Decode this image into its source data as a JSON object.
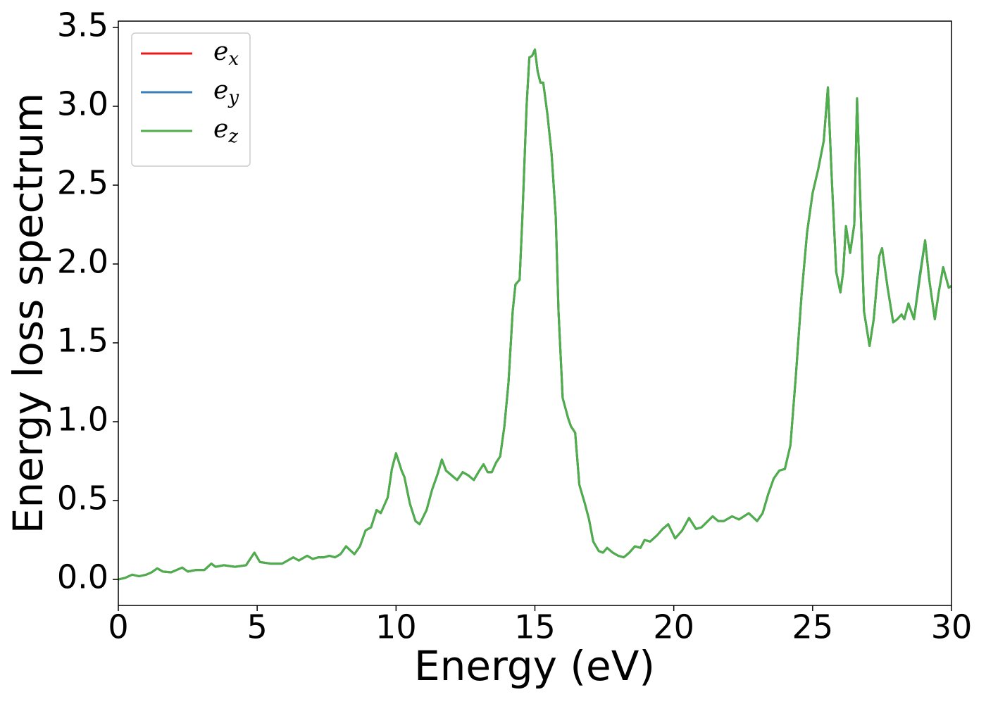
{
  "chart_data": {
    "type": "line",
    "xlabel": "Energy (eV)",
    "ylabel": "Energy loss spectrum",
    "x": [
      0,
      0.25,
      0.5,
      0.75,
      1.0,
      1.2,
      1.4,
      1.6,
      1.9,
      2.1,
      2.3,
      2.5,
      2.8,
      3.1,
      3.35,
      3.5,
      3.8,
      4.2,
      4.6,
      4.9,
      5.1,
      5.5,
      5.9,
      6.3,
      6.5,
      6.8,
      7.0,
      7.2,
      7.4,
      7.6,
      7.8,
      8.0,
      8.2,
      8.5,
      8.7,
      8.9,
      9.1,
      9.3,
      9.45,
      9.7,
      9.85,
      10.0,
      10.2,
      10.3,
      10.5,
      10.7,
      10.85,
      11.1,
      11.3,
      11.5,
      11.65,
      11.8,
      12.0,
      12.2,
      12.4,
      12.6,
      12.8,
      13.0,
      13.15,
      13.3,
      13.45,
      13.6,
      13.75,
      13.9,
      14.05,
      14.2,
      14.3,
      14.45,
      14.55,
      14.7,
      14.8,
      14.9,
      15.0,
      15.1,
      15.2,
      15.3,
      15.45,
      15.6,
      15.75,
      15.85,
      16.0,
      16.2,
      16.3,
      16.45,
      16.6,
      16.8,
      16.95,
      17.1,
      17.3,
      17.45,
      17.6,
      17.8,
      18.0,
      18.2,
      18.4,
      18.6,
      18.8,
      18.95,
      19.15,
      19.4,
      19.6,
      19.8,
      20.05,
      20.3,
      20.55,
      20.8,
      21.0,
      21.4,
      21.6,
      21.8,
      22.1,
      22.35,
      22.7,
      23.0,
      23.2,
      23.4,
      23.6,
      23.8,
      24.0,
      24.2,
      24.4,
      24.6,
      24.8,
      25.0,
      25.2,
      25.4,
      25.55,
      25.7,
      25.85,
      26.0,
      26.1,
      26.2,
      26.35,
      26.5,
      26.6,
      26.7,
      26.85,
      27.05,
      27.2,
      27.4,
      27.5,
      27.7,
      27.9,
      28.05,
      28.2,
      28.3,
      28.45,
      28.65,
      28.85,
      29.05,
      29.2,
      29.4,
      29.55,
      29.7,
      29.9,
      30.0
    ],
    "series": [
      {
        "name": "e_x",
        "color": "#e41a1c",
        "values": [
          0.0,
          0.01,
          0.03,
          0.02,
          0.03,
          0.045,
          0.07,
          0.05,
          0.045,
          0.06,
          0.075,
          0.05,
          0.06,
          0.06,
          0.1,
          0.08,
          0.09,
          0.08,
          0.09,
          0.17,
          0.11,
          0.1,
          0.1,
          0.14,
          0.12,
          0.15,
          0.13,
          0.14,
          0.14,
          0.15,
          0.14,
          0.16,
          0.21,
          0.16,
          0.21,
          0.31,
          0.33,
          0.44,
          0.42,
          0.52,
          0.7,
          0.8,
          0.69,
          0.65,
          0.48,
          0.37,
          0.35,
          0.44,
          0.57,
          0.67,
          0.76,
          0.69,
          0.66,
          0.63,
          0.68,
          0.66,
          0.63,
          0.69,
          0.73,
          0.68,
          0.68,
          0.74,
          0.78,
          0.97,
          1.25,
          1.7,
          1.87,
          1.9,
          2.3,
          3.0,
          3.31,
          3.32,
          3.36,
          3.22,
          3.15,
          3.15,
          2.95,
          2.7,
          2.3,
          1.7,
          1.15,
          1.02,
          0.97,
          0.93,
          0.6,
          0.48,
          0.38,
          0.24,
          0.18,
          0.17,
          0.2,
          0.17,
          0.15,
          0.14,
          0.17,
          0.21,
          0.2,
          0.25,
          0.24,
          0.28,
          0.32,
          0.35,
          0.26,
          0.31,
          0.39,
          0.32,
          0.33,
          0.4,
          0.37,
          0.37,
          0.4,
          0.38,
          0.42,
          0.37,
          0.42,
          0.54,
          0.64,
          0.69,
          0.7,
          0.85,
          1.3,
          1.8,
          2.2,
          2.45,
          2.6,
          2.78,
          3.12,
          2.5,
          1.95,
          1.82,
          1.95,
          2.24,
          2.07,
          2.25,
          3.05,
          2.5,
          1.7,
          1.48,
          1.65,
          2.05,
          2.1,
          1.85,
          1.63,
          1.65,
          1.68,
          1.65,
          1.75,
          1.65,
          1.9,
          2.15,
          1.9,
          1.65,
          1.83,
          1.98,
          1.85,
          1.86
        ]
      },
      {
        "name": "e_y",
        "color": "#377eb8",
        "values": [
          0.0,
          0.01,
          0.03,
          0.02,
          0.03,
          0.045,
          0.07,
          0.05,
          0.045,
          0.06,
          0.075,
          0.05,
          0.06,
          0.06,
          0.1,
          0.08,
          0.09,
          0.08,
          0.09,
          0.17,
          0.11,
          0.1,
          0.1,
          0.14,
          0.12,
          0.15,
          0.13,
          0.14,
          0.14,
          0.15,
          0.14,
          0.16,
          0.21,
          0.16,
          0.21,
          0.31,
          0.33,
          0.44,
          0.42,
          0.52,
          0.7,
          0.8,
          0.69,
          0.65,
          0.48,
          0.37,
          0.35,
          0.44,
          0.57,
          0.67,
          0.76,
          0.69,
          0.66,
          0.63,
          0.68,
          0.66,
          0.63,
          0.69,
          0.73,
          0.68,
          0.68,
          0.74,
          0.78,
          0.97,
          1.25,
          1.7,
          1.87,
          1.9,
          2.3,
          3.0,
          3.31,
          3.32,
          3.36,
          3.22,
          3.15,
          3.15,
          2.95,
          2.7,
          2.3,
          1.7,
          1.15,
          1.02,
          0.97,
          0.93,
          0.6,
          0.48,
          0.38,
          0.24,
          0.18,
          0.17,
          0.2,
          0.17,
          0.15,
          0.14,
          0.17,
          0.21,
          0.2,
          0.25,
          0.24,
          0.28,
          0.32,
          0.35,
          0.26,
          0.31,
          0.39,
          0.32,
          0.33,
          0.4,
          0.37,
          0.37,
          0.4,
          0.38,
          0.42,
          0.37,
          0.42,
          0.54,
          0.64,
          0.69,
          0.7,
          0.85,
          1.3,
          1.8,
          2.2,
          2.45,
          2.6,
          2.78,
          3.12,
          2.5,
          1.95,
          1.82,
          1.95,
          2.24,
          2.07,
          2.25,
          3.05,
          2.5,
          1.7,
          1.48,
          1.65,
          2.05,
          2.1,
          1.85,
          1.63,
          1.65,
          1.68,
          1.65,
          1.75,
          1.65,
          1.92,
          2.15,
          1.9,
          1.65,
          1.83,
          1.98,
          1.85,
          1.86
        ]
      },
      {
        "name": "e_z",
        "color": "#4daf4a",
        "values": [
          0.0,
          0.01,
          0.03,
          0.02,
          0.03,
          0.045,
          0.07,
          0.05,
          0.045,
          0.06,
          0.075,
          0.05,
          0.06,
          0.06,
          0.1,
          0.08,
          0.09,
          0.08,
          0.09,
          0.17,
          0.11,
          0.1,
          0.1,
          0.14,
          0.12,
          0.15,
          0.13,
          0.14,
          0.14,
          0.15,
          0.14,
          0.16,
          0.21,
          0.16,
          0.21,
          0.31,
          0.33,
          0.44,
          0.42,
          0.52,
          0.7,
          0.8,
          0.69,
          0.65,
          0.48,
          0.37,
          0.35,
          0.44,
          0.57,
          0.67,
          0.76,
          0.69,
          0.66,
          0.63,
          0.68,
          0.66,
          0.63,
          0.69,
          0.73,
          0.68,
          0.68,
          0.74,
          0.78,
          0.97,
          1.25,
          1.7,
          1.87,
          1.9,
          2.3,
          3.0,
          3.31,
          3.32,
          3.36,
          3.22,
          3.15,
          3.15,
          2.95,
          2.7,
          2.3,
          1.7,
          1.15,
          1.02,
          0.97,
          0.93,
          0.6,
          0.48,
          0.38,
          0.24,
          0.18,
          0.17,
          0.2,
          0.17,
          0.15,
          0.14,
          0.17,
          0.21,
          0.2,
          0.25,
          0.24,
          0.28,
          0.32,
          0.35,
          0.26,
          0.31,
          0.39,
          0.32,
          0.33,
          0.4,
          0.37,
          0.37,
          0.4,
          0.38,
          0.42,
          0.37,
          0.42,
          0.54,
          0.64,
          0.69,
          0.7,
          0.85,
          1.3,
          1.8,
          2.2,
          2.45,
          2.6,
          2.78,
          3.12,
          2.5,
          1.95,
          1.82,
          1.95,
          2.24,
          2.07,
          2.25,
          3.05,
          2.5,
          1.7,
          1.48,
          1.65,
          2.05,
          2.1,
          1.85,
          1.63,
          1.65,
          1.68,
          1.65,
          1.75,
          1.65,
          1.9,
          2.15,
          1.9,
          1.65,
          1.83,
          1.98,
          1.85,
          1.86
        ]
      }
    ],
    "xlim": [
      0,
      30
    ],
    "xticks": [
      0,
      5,
      10,
      15,
      20,
      25,
      30
    ],
    "ylim": [
      -0.165,
      3.54
    ],
    "yticks": [
      {
        "value": 0,
        "label": "0.0"
      },
      0.5,
      {
        "value": 1,
        "label": "1.0"
      },
      1.5,
      {
        "value": 2,
        "label": "2.0"
      },
      2.5,
      {
        "value": 3,
        "label": "3.0"
      },
      3.5
    ],
    "grid": false,
    "legend": "upper left"
  }
}
